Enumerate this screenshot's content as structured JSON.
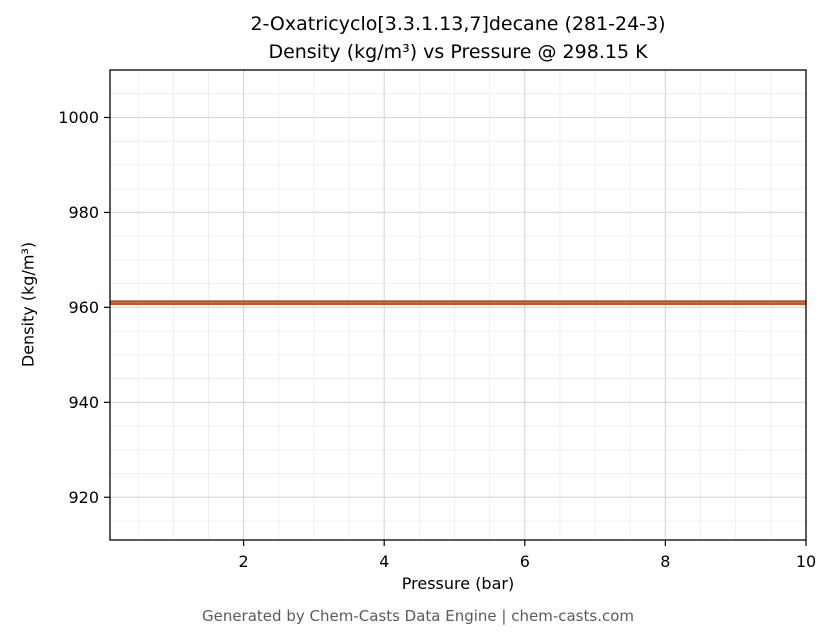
{
  "chart_data": {
    "type": "line",
    "title_line1": "2-Oxatricyclo[3.3.1.13,7]decane (281-24-3)",
    "title_line2": "Density (kg/m³) vs Pressure @ 298.15 K",
    "xlabel": "Pressure (bar)",
    "ylabel": "Density (kg/m³)",
    "xlim": [
      0.1,
      10
    ],
    "ylim": [
      911,
      1010
    ],
    "xticks": [
      2,
      4,
      6,
      8,
      10
    ],
    "yticks": [
      920,
      940,
      960,
      980,
      1000
    ],
    "x_minor_step": 0.5,
    "y_minor_step": 5,
    "grid": true,
    "grid_major_color": "#d4d4d4",
    "grid_minor_color": "#ebebeb",
    "axis_color": "#000000",
    "legend_position": "none",
    "series": [
      {
        "name": "Density @ 298.15 K",
        "x": [
          0.1,
          10
        ],
        "y": [
          961,
          961
        ],
        "color": "#b5421e",
        "highlight_color": "#e0703a",
        "line_width": 4.6
      }
    ]
  },
  "footer": {
    "text": "Generated by Chem-Casts Data Engine | chem-casts.com"
  }
}
